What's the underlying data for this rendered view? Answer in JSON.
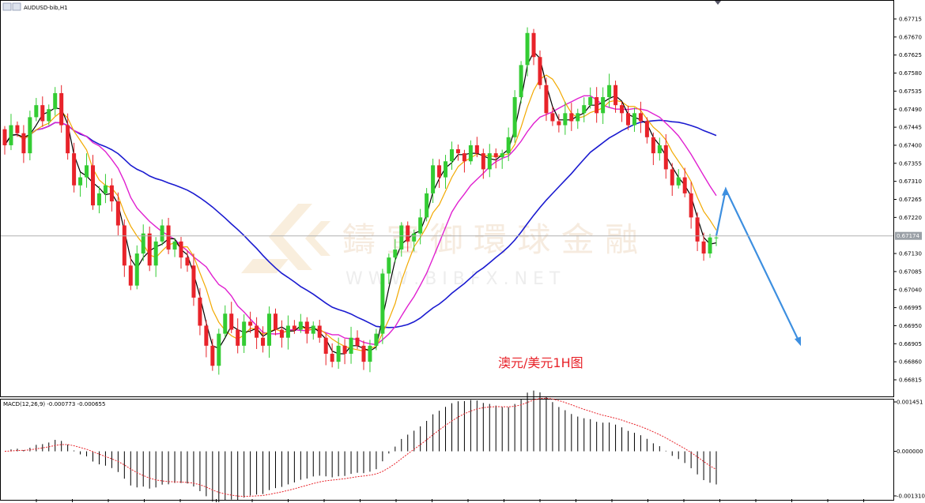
{
  "window": {
    "symbol_title": "AUDUSD-bib,H1"
  },
  "watermark": {
    "brand": "鑄 宣 御 環 球 金 融",
    "url": "W W W . B I B F X . N E T"
  },
  "annotation": {
    "text": "澳元/美元1H图",
    "color": "#e8232a"
  },
  "colors": {
    "bull_candle": "#33cc33",
    "bear_candle": "#e8232a",
    "ma_fast": "#000000",
    "ma_mid": "#f2a900",
    "ma_slow": "#e020d0",
    "ma_long": "#1a1ad0",
    "forecast_arrow": "#3d8fe0",
    "macd_signal": "#e8232a",
    "current_price_line": "#b0b0b0"
  },
  "chart_data": [
    {
      "type": "candlestick",
      "name": "price",
      "y_ticks": [
        "0.67715",
        "0.67670",
        "0.67625",
        "0.67580",
        "0.67535",
        "0.67490",
        "0.67445",
        "0.67400",
        "0.67355",
        "0.67310",
        "0.67265",
        "0.67220",
        "0.67130",
        "0.67085",
        "0.67040",
        "0.66995",
        "0.66950",
        "0.66905",
        "0.66860",
        "0.66815"
      ],
      "ylim": [
        0.66795,
        0.67745
      ],
      "current_price_label": "0.67174",
      "current_price": 0.67174,
      "closes": [
        0.674,
        0.6745,
        0.6743,
        0.6738,
        0.6747,
        0.675,
        0.6746,
        0.6749,
        0.6753,
        0.6745,
        0.6738,
        0.673,
        0.6732,
        0.6735,
        0.6725,
        0.6728,
        0.673,
        0.6726,
        0.672,
        0.671,
        0.6705,
        0.6713,
        0.6718,
        0.671,
        0.6716,
        0.672,
        0.6714,
        0.6716,
        0.6712,
        0.671,
        0.6702,
        0.6695,
        0.669,
        0.6685,
        0.6693,
        0.6698,
        0.6694,
        0.669,
        0.6696,
        0.6695,
        0.6692,
        0.669,
        0.6698,
        0.6694,
        0.6692,
        0.6695,
        0.6694,
        0.6696,
        0.6693,
        0.6695,
        0.6692,
        0.6688,
        0.6686,
        0.669,
        0.6688,
        0.6692,
        0.669,
        0.6686,
        0.669,
        0.6693,
        0.6708,
        0.6712,
        0.6714,
        0.672,
        0.6716,
        0.6718,
        0.6722,
        0.6728,
        0.6735,
        0.6732,
        0.6736,
        0.6739,
        0.6738,
        0.6736,
        0.674,
        0.6738,
        0.6734,
        0.6738,
        0.6737,
        0.6738,
        0.6742,
        0.6752,
        0.676,
        0.6768,
        0.6762,
        0.6755,
        0.6748,
        0.6746,
        0.6745,
        0.6748,
        0.6746,
        0.6748,
        0.675,
        0.6752,
        0.6748,
        0.6752,
        0.6755,
        0.675,
        0.6748,
        0.6745,
        0.6748,
        0.6746,
        0.6742,
        0.6738,
        0.674,
        0.6734,
        0.673,
        0.6732,
        0.6728,
        0.6722,
        0.6716,
        0.6713,
        0.6717,
        0.6717
      ],
      "forecast_path": [
        0.67174,
        0.6729,
        0.66905
      ]
    },
    {
      "type": "macd",
      "label": "MACD(12,26,9) -0.000773 -0.000655",
      "y_ticks": [
        "0.001451",
        "0.000000",
        "-0.001310"
      ],
      "ylim": [
        -0.00131,
        0.00145
      ]
    }
  ]
}
